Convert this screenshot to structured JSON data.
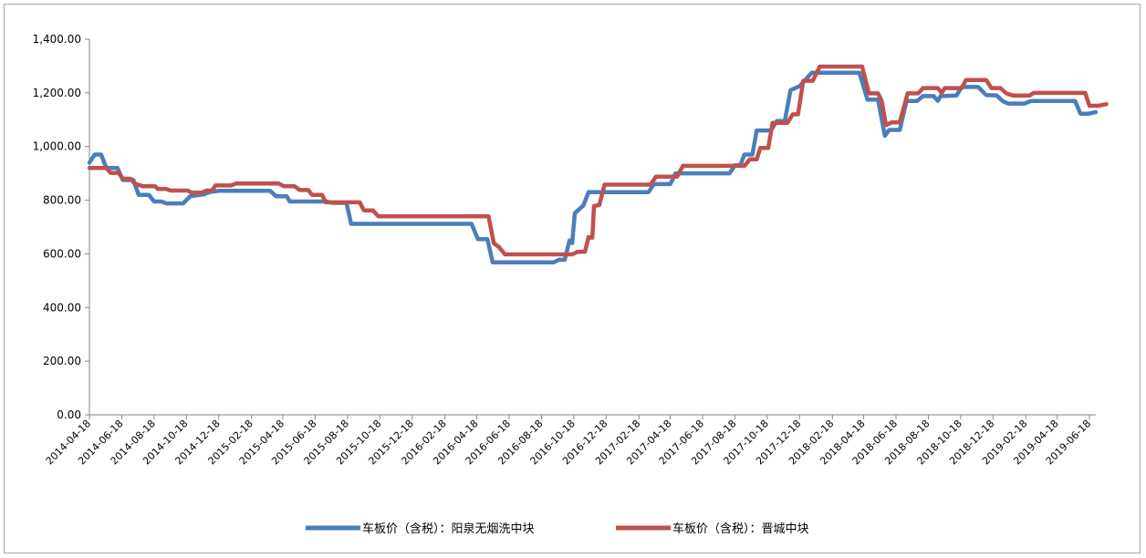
{
  "chart_data": {
    "type": "line",
    "title": "",
    "xlabel": "",
    "ylabel": "",
    "ylim": [
      0,
      1400
    ],
    "y_ticks": [
      "0.00",
      "200.00",
      "400.00",
      "600.00",
      "800.00",
      "1,000.00",
      "1,200.00",
      "1,400.00"
    ],
    "x_tick_labels": [
      "2014-04-18",
      "2014-06-18",
      "2014-08-18",
      "2014-10-18",
      "2014-12-18",
      "2015-02-18",
      "2015-04-18",
      "2015-06-18",
      "2015-08-18",
      "2015-10-18",
      "2015-12-18",
      "2016-02-18",
      "2016-04-18",
      "2016-06-18",
      "2016-08-18",
      "2016-10-18",
      "2016-12-18",
      "2017-02-18",
      "2017-04-18",
      "2017-06-18",
      "2017-08-18",
      "2017-10-18",
      "2017-12-18",
      "2018-02-18",
      "2018-04-18",
      "2018-06-18",
      "2018-08-18",
      "2018-10-18",
      "2018-12-18",
      "2019-02-18",
      "2019-04-18",
      "2019-06-18"
    ],
    "x_start": "2014-04-18",
    "x_end": "2019-06-30",
    "grid": false,
    "legend_position": "bottom",
    "series": [
      {
        "name": "车板价（含税）：阳泉无烟洗中块",
        "color": "#4a7ebb",
        "points": [
          [
            "2014-04-18",
            940
          ],
          [
            "2014-04-28",
            970
          ],
          [
            "2014-05-10",
            970
          ],
          [
            "2014-05-20",
            920
          ],
          [
            "2014-06-10",
            920
          ],
          [
            "2014-06-20",
            875
          ],
          [
            "2014-07-10",
            875
          ],
          [
            "2014-07-20",
            820
          ],
          [
            "2014-08-08",
            820
          ],
          [
            "2014-08-18",
            795
          ],
          [
            "2014-09-01",
            795
          ],
          [
            "2014-09-10",
            788
          ],
          [
            "2014-10-12",
            788
          ],
          [
            "2014-10-25",
            815
          ],
          [
            "2014-11-20",
            822
          ],
          [
            "2014-12-01",
            830
          ],
          [
            "2014-12-18",
            835
          ],
          [
            "2015-03-25",
            835
          ],
          [
            "2015-04-05",
            815
          ],
          [
            "2015-04-25",
            815
          ],
          [
            "2015-05-01",
            795
          ],
          [
            "2015-07-10",
            795
          ],
          [
            "2015-07-20",
            790
          ],
          [
            "2015-08-16",
            790
          ],
          [
            "2015-08-25",
            712
          ],
          [
            "2016-04-08",
            712
          ],
          [
            "2016-04-20",
            655
          ],
          [
            "2016-05-08",
            655
          ],
          [
            "2016-05-18",
            568
          ],
          [
            "2016-09-10",
            568
          ],
          [
            "2016-09-20",
            578
          ],
          [
            "2016-10-01",
            578
          ],
          [
            "2016-10-10",
            650
          ],
          [
            "2016-10-15",
            640
          ],
          [
            "2016-10-20",
            752
          ],
          [
            "2016-11-05",
            780
          ],
          [
            "2016-11-15",
            830
          ],
          [
            "2017-03-08",
            830
          ],
          [
            "2017-03-18",
            860
          ],
          [
            "2017-04-18",
            860
          ],
          [
            "2017-04-28",
            900
          ],
          [
            "2017-08-08",
            900
          ],
          [
            "2017-08-18",
            930
          ],
          [
            "2017-08-28",
            930
          ],
          [
            "2017-09-05",
            970
          ],
          [
            "2017-09-20",
            970
          ],
          [
            "2017-09-28",
            1060
          ],
          [
            "2017-10-25",
            1060
          ],
          [
            "2017-11-05",
            1095
          ],
          [
            "2017-11-20",
            1095
          ],
          [
            "2017-12-01",
            1210
          ],
          [
            "2017-12-18",
            1225
          ],
          [
            "2018-01-10",
            1275
          ],
          [
            "2018-04-10",
            1275
          ],
          [
            "2018-04-25",
            1175
          ],
          [
            "2018-05-15",
            1175
          ],
          [
            "2018-05-28",
            1040
          ],
          [
            "2018-06-05",
            1062
          ],
          [
            "2018-06-25",
            1062
          ],
          [
            "2018-07-08",
            1170
          ],
          [
            "2018-07-28",
            1170
          ],
          [
            "2018-08-08",
            1188
          ],
          [
            "2018-08-28",
            1188
          ],
          [
            "2018-09-05",
            1170
          ],
          [
            "2018-09-10",
            1188
          ],
          [
            "2018-10-10",
            1190
          ],
          [
            "2018-10-20",
            1222
          ],
          [
            "2018-11-20",
            1222
          ],
          [
            "2018-12-05",
            1192
          ],
          [
            "2018-12-25",
            1190
          ],
          [
            "2019-01-05",
            1170
          ],
          [
            "2019-01-15",
            1160
          ],
          [
            "2019-02-15",
            1160
          ],
          [
            "2019-02-28",
            1170
          ],
          [
            "2019-05-22",
            1170
          ],
          [
            "2019-06-01",
            1122
          ],
          [
            "2019-06-15",
            1122
          ],
          [
            "2019-06-30",
            1128
          ]
        ]
      },
      {
        "name": "车板价（含税）：晋城中块",
        "color": "#c0504d",
        "points": [
          [
            "2014-04-18",
            920
          ],
          [
            "2014-05-20",
            920
          ],
          [
            "2014-05-28",
            902
          ],
          [
            "2014-06-12",
            902
          ],
          [
            "2014-06-20",
            880
          ],
          [
            "2014-07-05",
            880
          ],
          [
            "2014-07-12",
            862
          ],
          [
            "2014-07-28",
            852
          ],
          [
            "2014-08-20",
            852
          ],
          [
            "2014-08-25",
            842
          ],
          [
            "2014-09-10",
            842
          ],
          [
            "2014-09-18",
            836
          ],
          [
            "2014-10-20",
            836
          ],
          [
            "2014-10-28",
            828
          ],
          [
            "2014-11-15",
            828
          ],
          [
            "2014-11-25",
            836
          ],
          [
            "2014-12-05",
            836
          ],
          [
            "2014-12-12",
            855
          ],
          [
            "2015-01-10",
            855
          ],
          [
            "2015-01-20",
            862
          ],
          [
            "2015-04-10",
            862
          ],
          [
            "2015-04-20",
            852
          ],
          [
            "2015-05-10",
            852
          ],
          [
            "2015-05-20",
            838
          ],
          [
            "2015-06-05",
            838
          ],
          [
            "2015-06-12",
            820
          ],
          [
            "2015-07-01",
            820
          ],
          [
            "2015-07-08",
            792
          ],
          [
            "2015-09-10",
            792
          ],
          [
            "2015-09-18",
            762
          ],
          [
            "2015-10-05",
            762
          ],
          [
            "2015-10-15",
            740
          ],
          [
            "2016-05-10",
            740
          ],
          [
            "2016-05-20",
            640
          ],
          [
            "2016-05-30",
            625
          ],
          [
            "2016-06-10",
            598
          ],
          [
            "2016-10-15",
            598
          ],
          [
            "2016-10-25",
            608
          ],
          [
            "2016-11-08",
            608
          ],
          [
            "2016-11-15",
            663
          ],
          [
            "2016-11-22",
            660
          ],
          [
            "2016-11-25",
            778
          ],
          [
            "2016-12-05",
            782
          ],
          [
            "2016-12-15",
            858
          ],
          [
            "2017-03-12",
            858
          ],
          [
            "2017-03-22",
            888
          ],
          [
            "2017-05-01",
            888
          ],
          [
            "2017-05-12",
            928
          ],
          [
            "2017-09-05",
            928
          ],
          [
            "2017-09-15",
            952
          ],
          [
            "2017-09-28",
            952
          ],
          [
            "2017-10-05",
            995
          ],
          [
            "2017-10-20",
            995
          ],
          [
            "2017-10-28",
            1088
          ],
          [
            "2017-11-25",
            1088
          ],
          [
            "2017-12-05",
            1120
          ],
          [
            "2017-12-15",
            1120
          ],
          [
            "2017-12-25",
            1245
          ],
          [
            "2018-01-12",
            1245
          ],
          [
            "2018-01-25",
            1298
          ],
          [
            "2018-04-15",
            1298
          ],
          [
            "2018-04-28",
            1198
          ],
          [
            "2018-05-15",
            1198
          ],
          [
            "2018-05-22",
            1170
          ],
          [
            "2018-05-30",
            1080
          ],
          [
            "2018-06-10",
            1090
          ],
          [
            "2018-06-25",
            1090
          ],
          [
            "2018-07-10",
            1198
          ],
          [
            "2018-07-30",
            1198
          ],
          [
            "2018-08-08",
            1218
          ],
          [
            "2018-09-05",
            1218
          ],
          [
            "2018-09-12",
            1200
          ],
          [
            "2018-09-18",
            1218
          ],
          [
            "2018-10-20",
            1218
          ],
          [
            "2018-10-28",
            1248
          ],
          [
            "2018-12-05",
            1248
          ],
          [
            "2018-12-15",
            1218
          ],
          [
            "2019-01-01",
            1218
          ],
          [
            "2019-01-12",
            1198
          ],
          [
            "2019-01-25",
            1190
          ],
          [
            "2019-02-25",
            1190
          ],
          [
            "2019-03-05",
            1200
          ],
          [
            "2019-06-10",
            1200
          ],
          [
            "2019-06-18",
            1152
          ],
          [
            "2019-07-05",
            1152
          ],
          [
            "2019-07-20",
            1158
          ]
        ]
      }
    ]
  }
}
